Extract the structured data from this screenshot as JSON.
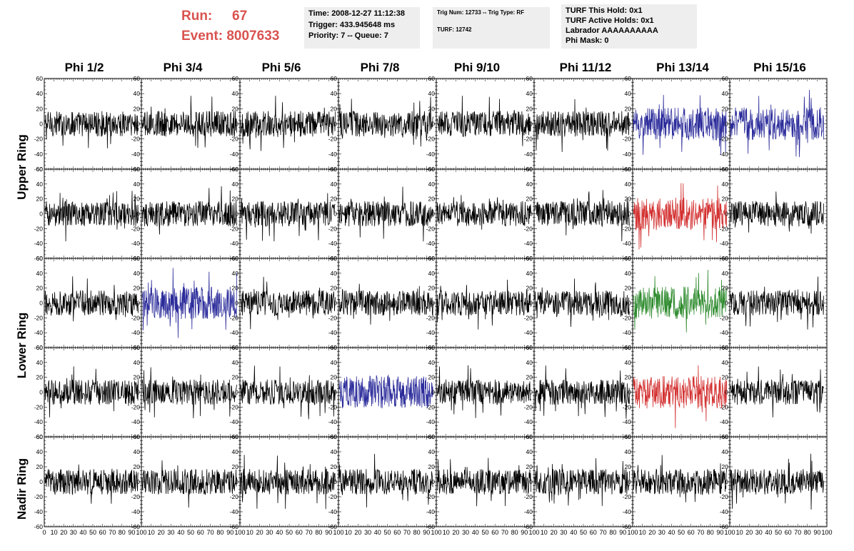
{
  "header": {
    "run_label": "Run:",
    "run_value": "67",
    "event_label": "Event:",
    "event_value": "8007633",
    "info1": [
      "Time: 2008-12-27 11:12:38",
      "Trigger: 433.945648 ms",
      "Priority: 7 -- Queue: 7"
    ],
    "info2": [
      "Trig Num: 12733 -- Trig Type: RF",
      "",
      "TURF: 12742"
    ],
    "info3": [
      "TURF This Hold: 0x1",
      "TURF Active Holds: 0x1",
      "Labrador AAAAAAAAAA",
      "Phi Mask: 0"
    ]
  },
  "columns": [
    "Phi 1/2",
    "Phi 3/4",
    "Phi 5/6",
    "Phi 7/8",
    "Phi 9/10",
    "Phi 11/12",
    "Phi 13/14",
    "Phi 15/16"
  ],
  "rings": [
    "Upper Ring",
    "Lower Ring",
    "Nadir Ring"
  ],
  "colors": {
    "trace": "#000000",
    "blue": "#2b2b9b",
    "red": "#d32f2f",
    "green": "#2e8b2e",
    "header_red": "#d9534f"
  },
  "chart_data": {
    "type": "line",
    "title": "",
    "xlabel": "",
    "ylabel": "",
    "xlim": [
      0,
      100
    ],
    "ylim": [
      -60,
      60
    ],
    "y_ticks": [
      -60,
      -40,
      -20,
      0,
      20,
      40,
      60
    ],
    "x_tick_labels": [
      "0",
      "10",
      "20",
      "30",
      "40",
      "50",
      "60",
      "70",
      "80",
      "90",
      "100"
    ],
    "rows": 5,
    "cols": 8,
    "highlights": [
      {
        "row": 0,
        "col": 6,
        "color": "blue"
      },
      {
        "row": 0,
        "col": 7,
        "color": "blue"
      },
      {
        "row": 1,
        "col": 6,
        "color": "red"
      },
      {
        "row": 2,
        "col": 1,
        "color": "blue"
      },
      {
        "row": 2,
        "col": 6,
        "color": "green"
      },
      {
        "row": 3,
        "col": 3,
        "color": "blue"
      },
      {
        "row": 3,
        "col": 6,
        "color": "red"
      }
    ]
  }
}
